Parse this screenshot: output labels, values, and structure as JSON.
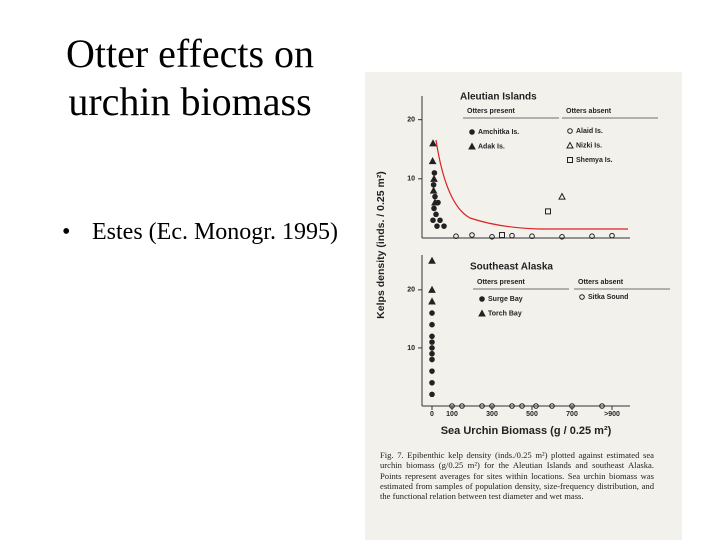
{
  "slide": {
    "title": "Otter effects on urchin biomass",
    "bullets": [
      "Estes (Ec. Monogr. 1995)"
    ]
  },
  "figure": {
    "y_axis_label": "Kelps density (inds. / 0.25 m²)",
    "x_axis_label": "Sea Urchin Biomass (g / 0.25 m²)",
    "xlim": [
      0,
      900
    ],
    "xticks": [
      0,
      100,
      300,
      500,
      700,
      {
        "value": 900,
        "label": ">900"
      }
    ],
    "panels": [
      {
        "title": "Aleutian Islands",
        "legend_headings": [
          "Otters present",
          "Otters absent"
        ],
        "ylim": [
          0,
          24
        ],
        "yticks": [
          10,
          20
        ],
        "series": [
          {
            "name": "Amchitka Is.",
            "marker": "dot",
            "legend_column": 0,
            "x": [
              5,
              10,
              15,
              20,
              8,
              25,
              30,
              12,
              40,
              60
            ],
            "y": [
              3,
              5,
              7,
              4,
              9,
              2,
              6,
              11,
              3,
              2
            ]
          },
          {
            "name": "Adak Is.",
            "marker": "triangle",
            "legend_column": 0,
            "x": [
              5,
              3,
              10,
              8,
              15
            ],
            "y": [
              16,
              13,
              10,
              8,
              6
            ]
          },
          {
            "name": "Alaid Is.",
            "marker": "circle",
            "legend_column": 1,
            "x": [
              120,
              200,
              300,
              400,
              500,
              650,
              800,
              900
            ],
            "y": [
              0.3,
              0.5,
              0.2,
              0.4,
              0.3,
              0.2,
              0.3,
              0.4
            ]
          },
          {
            "name": "Nizki Is.",
            "marker": "open-triangle",
            "legend_column": 1,
            "x": [
              650
            ],
            "y": [
              7
            ]
          },
          {
            "name": "Shemya Is.",
            "marker": "square",
            "legend_column": 1,
            "x": [
              580,
              350
            ],
            "y": [
              4.5,
              0.5
            ]
          }
        ]
      },
      {
        "title": "Southeast Alaska",
        "legend_headings": [
          "Otters present",
          "Otters absent"
        ],
        "ylim": [
          0,
          26
        ],
        "yticks": [
          10,
          20
        ],
        "series": [
          {
            "name": "Surge Bay",
            "marker": "dot",
            "legend_column": 0,
            "x": [
              0,
              0,
              0,
              0,
              0,
              0,
              0,
              0,
              0,
              0
            ],
            "y": [
              2,
              4,
              6,
              8,
              9,
              10,
              11,
              12,
              14,
              16
            ]
          },
          {
            "name": "Torch Bay",
            "marker": "triangle",
            "legend_column": 0,
            "x": [
              0,
              0,
              0
            ],
            "y": [
              25,
              20,
              18
            ]
          },
          {
            "name": "Sitka Sound",
            "marker": "circle",
            "legend_column": 1,
            "x": [
              100,
              150,
              250,
              300,
              400,
              450,
              520,
              600,
              700,
              850
            ],
            "y": [
              0,
              0,
              0,
              0,
              0,
              0,
              0,
              0,
              0,
              0
            ]
          }
        ]
      }
    ],
    "caption": "Fig. 7. Epibenthic kelp density (inds./0.25 m²) plotted against estimated sea urchin biomass (g/0.25 m²) for the Aleutian Islands and southeast Alaska. Points represent averages for sites within locations. Sea urchin biomass was estimated from samples of population density, size-frequency distribution, and the functional relation between test diameter and wet mass."
  }
}
